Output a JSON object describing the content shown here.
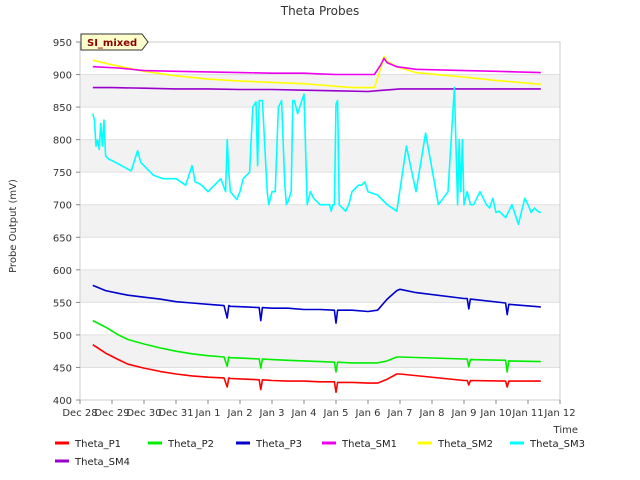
{
  "chart_data": {
    "type": "line",
    "title": "Theta Probes",
    "xlabel": "Time",
    "ylabel": "Probe Output (mV)",
    "badge": "SI_mixed",
    "xlim": [
      0,
      15
    ],
    "ylim": [
      400,
      950
    ],
    "grid": true,
    "legend_position": "bottom",
    "x_tick_values": [
      0,
      1,
      2,
      3,
      4,
      5,
      6,
      7,
      8,
      9,
      10,
      11,
      12,
      13,
      14,
      15
    ],
    "x_tick_labels": [
      "Dec 28",
      "Dec 29",
      "Dec 30",
      "Dec 31",
      "Jan 1",
      "Jan 2",
      "Jan 3",
      "Jan 4",
      "Jan 5",
      "Jan 6",
      "Jan 7",
      "Jan 8",
      "Jan 9",
      "Jan 10",
      "Jan 11",
      "Jan 12"
    ],
    "y_tick_values": [
      400,
      450,
      500,
      550,
      600,
      650,
      700,
      750,
      800,
      850,
      900,
      950
    ],
    "series": [
      {
        "name": "Theta_P1",
        "color": "#ff0000",
        "x": [
          0.4,
          0.8,
          1.2,
          1.5,
          2,
          2.5,
          3,
          3.5,
          4,
          4.5,
          4.6,
          4.65,
          4.7,
          5.2,
          5.6,
          5.65,
          5.7,
          6,
          6.5,
          7,
          7.5,
          7.95,
          8.0,
          8.05,
          8.5,
          9,
          9.3,
          9.6,
          9.9,
          10,
          12,
          12.1,
          12.15,
          12.2,
          13.3,
          13.35,
          13.4,
          14.4
        ],
        "y": [
          485,
          472,
          462,
          455,
          449,
          444,
          440,
          437,
          435,
          434,
          420,
          434,
          433,
          432,
          431,
          416,
          431,
          430,
          429,
          429,
          428,
          428,
          412,
          427,
          427,
          426,
          426,
          432,
          440,
          440,
          430,
          430,
          423,
          430,
          429,
          420,
          429,
          429
        ]
      },
      {
        "name": "Theta_P2",
        "color": "#00ee00",
        "x": [
          0.4,
          0.8,
          1.2,
          1.5,
          2,
          2.5,
          3,
          3.5,
          4,
          4.5,
          4.6,
          4.65,
          4.7,
          5.2,
          5.6,
          5.65,
          5.7,
          6,
          6.5,
          7,
          7.5,
          7.95,
          8.0,
          8.05,
          8.5,
          9,
          9.3,
          9.6,
          9.9,
          10,
          12,
          12.1,
          12.15,
          12.2,
          13.3,
          13.35,
          13.4,
          14.4
        ],
        "y": [
          522,
          512,
          500,
          493,
          486,
          480,
          475,
          471,
          468,
          466,
          452,
          466,
          465,
          464,
          463,
          449,
          463,
          462,
          461,
          460,
          459,
          458,
          443,
          458,
          457,
          457,
          457,
          460,
          466,
          466,
          463,
          463,
          451,
          462,
          461,
          443,
          460,
          459
        ]
      },
      {
        "name": "Theta_P3",
        "color": "#0000cc",
        "x": [
          0.4,
          0.8,
          1.2,
          1.5,
          2,
          2.5,
          3,
          3.5,
          4,
          4.5,
          4.6,
          4.65,
          4.7,
          5.2,
          5.6,
          5.65,
          5.7,
          6,
          6.5,
          7,
          7.5,
          7.95,
          8.0,
          8.05,
          8.5,
          9,
          9.3,
          9.6,
          9.9,
          10,
          10.5,
          12,
          12.1,
          12.15,
          12.2,
          13.3,
          13.35,
          13.4,
          14.4
        ],
        "y": [
          576,
          568,
          564,
          561,
          558,
          555,
          551,
          549,
          547,
          545,
          526,
          545,
          544,
          543,
          542,
          522,
          542,
          541,
          541,
          539,
          539,
          538,
          518,
          538,
          538,
          536,
          538,
          555,
          568,
          570,
          565,
          556,
          556,
          540,
          555,
          549,
          531,
          547,
          543
        ]
      },
      {
        "name": "Theta_SM1",
        "color": "#ee00ee",
        "x": [
          0.4,
          1.2,
          2,
          3,
          4,
          5,
          6,
          7,
          7.5,
          8,
          8.5,
          9.2,
          9.4,
          9.5,
          9.6,
          9.9,
          10.5,
          12,
          13,
          14.4
        ],
        "y": [
          912,
          910,
          906,
          905,
          904,
          903,
          902,
          902,
          901,
          900,
          900,
          900,
          915,
          925,
          918,
          912,
          908,
          906,
          905,
          903
        ]
      },
      {
        "name": "Theta_SM2",
        "color": "#ffff00",
        "x": [
          0.4,
          1,
          2,
          3,
          4,
          5,
          6,
          7,
          7.5,
          8,
          8.5,
          9.2,
          9.4,
          9.5,
          9.6,
          9.9,
          10.5,
          12,
          13,
          14.4
        ],
        "y": [
          922,
          915,
          905,
          898,
          893,
          890,
          888,
          886,
          884,
          882,
          880,
          880,
          910,
          928,
          920,
          912,
          903,
          896,
          891,
          885
        ]
      },
      {
        "name": "Theta_SM3",
        "color": "#00ffff",
        "x": [
          0.4,
          0.45,
          0.5,
          0.55,
          0.6,
          0.65,
          0.7,
          0.75,
          0.8,
          0.9,
          1.0,
          1.3,
          1.6,
          1.8,
          1.9,
          2.0,
          2.1,
          2.3,
          2.6,
          3.0,
          3.3,
          3.5,
          3.6,
          3.7,
          3.8,
          4.0,
          4.4,
          4.55,
          4.6,
          4.65,
          4.7,
          4.9,
          5.0,
          5.1,
          5.3,
          5.4,
          5.5,
          5.55,
          5.6,
          5.7,
          5.85,
          5.9,
          5.95,
          6.0,
          6.1,
          6.2,
          6.3,
          6.4,
          6.45,
          6.5,
          6.6,
          6.65,
          6.7,
          6.8,
          6.9,
          7.0,
          7.1,
          7.2,
          7.3,
          7.4,
          7.5,
          7.6,
          7.7,
          7.8,
          7.85,
          7.9,
          7.95,
          8.0,
          8.05,
          8.1,
          8.3,
          8.4,
          8.5,
          8.6,
          8.7,
          8.8,
          8.9,
          9.0,
          9.3,
          9.6,
          9.9,
          10.2,
          10.5,
          10.8,
          11.2,
          11.5,
          11.7,
          11.8,
          11.85,
          11.9,
          11.95,
          12.0,
          12.1,
          12.2,
          12.3,
          12.5,
          12.7,
          12.8,
          12.9,
          13.0,
          13.1,
          13.3,
          13.5,
          13.7,
          13.8,
          13.9,
          14.0,
          14.1,
          14.2,
          14.3,
          14.4
        ],
        "y": [
          840,
          830,
          790,
          800,
          785,
          825,
          790,
          830,
          775,
          770,
          768,
          760,
          752,
          783,
          765,
          760,
          755,
          745,
          740,
          740,
          730,
          760,
          735,
          733,
          730,
          720,
          740,
          720,
          800,
          750,
          720,
          708,
          720,
          740,
          750,
          850,
          858,
          760,
          860,
          860,
          720,
          700,
          710,
          720,
          720,
          850,
          860,
          730,
          700,
          705,
          720,
          860,
          860,
          840,
          855,
          870,
          700,
          720,
          710,
          705,
          700,
          700,
          700,
          700,
          690,
          700,
          700,
          855,
          860,
          700,
          690,
          700,
          720,
          725,
          730,
          730,
          735,
          720,
          715,
          700,
          690,
          790,
          720,
          810,
          700,
          720,
          880,
          700,
          800,
          720,
          800,
          700,
          720,
          700,
          700,
          720,
          700,
          695,
          710,
          688,
          690,
          680,
          700,
          670,
          690,
          710,
          700,
          688,
          695,
          690,
          688
        ]
      },
      {
        "name": "Theta_SM4",
        "color": "#9900cc",
        "x": [
          0.4,
          1,
          2,
          3,
          4,
          5,
          6,
          7,
          8,
          9,
          9.5,
          10,
          11,
          12,
          13,
          14.4
        ],
        "y": [
          880,
          880,
          879,
          878,
          878,
          877,
          877,
          876,
          875,
          874,
          876,
          878,
          878,
          878,
          878,
          878
        ]
      }
    ]
  }
}
